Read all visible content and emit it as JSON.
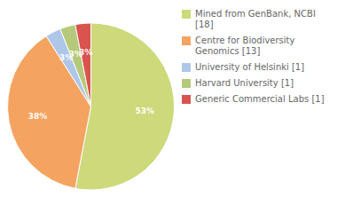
{
  "chart_data": {
    "type": "pie",
    "categories": [
      "Mined from GenBank, NCBI [18]",
      "Centre for Biodiversity\nGenomics [13]",
      "University of Helsinki [1]",
      "Harvard University [1]",
      "Generic Commercial Labs [1]"
    ],
    "values": [
      53,
      38,
      3,
      3,
      3
    ],
    "value_labels": [
      "53%",
      "38%",
      "3%",
      "3%",
      "3%"
    ],
    "colors": [
      "#cdd97a",
      "#f4a460",
      "#aec6e8",
      "#b5c97a",
      "#d9534f"
    ],
    "data_labels": true,
    "legend": "right"
  }
}
